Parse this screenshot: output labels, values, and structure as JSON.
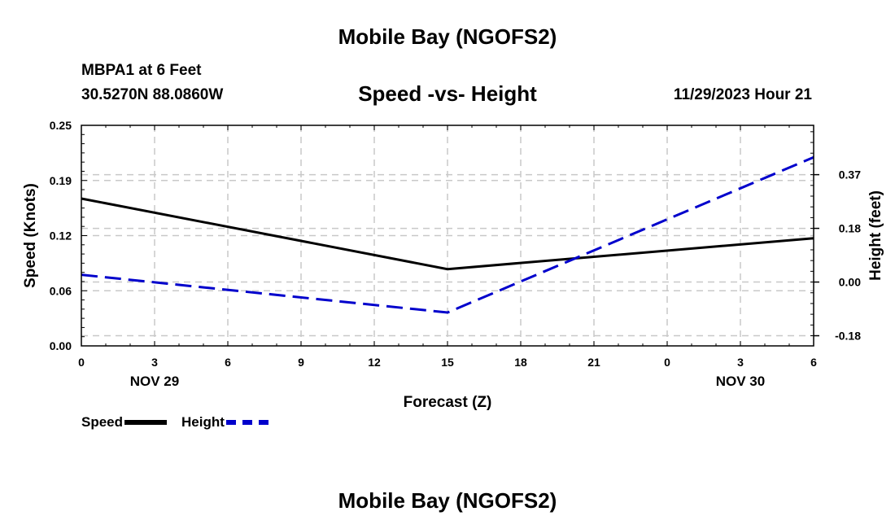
{
  "header": {
    "title": "Mobile Bay (NGOFS2)",
    "station": "MBPA1 at 6 Feet",
    "coords": "30.5270N  88.0860W",
    "subtitle": "Speed -vs- Height",
    "datetime": "11/29/2023 Hour 21"
  },
  "footer": {
    "title": "Mobile Bay (NGOFS2)"
  },
  "chart_data": {
    "type": "line",
    "xlabel": "Forecast (Z)",
    "ylabel": "Speed (Knots)",
    "ylabel_right": "Height (feet)",
    "x_ticks": [
      "0",
      "3",
      "6",
      "9",
      "12",
      "15",
      "18",
      "21",
      "0",
      "3",
      "6"
    ],
    "x_day_labels": [
      {
        "hour_index": 12,
        "label": "NOV 29"
      },
      {
        "hour_index": 36,
        "label": "NOV 30"
      }
    ],
    "xlim": [
      0,
      30
    ],
    "ylim": [
      0,
      0.25
    ],
    "y_ticks": [
      "0.00",
      "0.06",
      "0.12",
      "0.19",
      "0.25"
    ],
    "y_tick_values": [
      0,
      0.0625,
      0.125,
      0.1875,
      0.25
    ],
    "ylim_right": [
      -0.22,
      0.54
    ],
    "y_ticks_right": [
      "-0.18",
      "0.00",
      "0.18",
      "0.37"
    ],
    "y_tick_values_right": [
      -0.185,
      0,
      0.185,
      0.37
    ],
    "grid": true,
    "series": [
      {
        "name": "Speed",
        "axis": "left",
        "color": "#000000",
        "style": "solid",
        "x": [
          0,
          15,
          30
        ],
        "y": [
          0.167,
          0.087,
          0.122
        ]
      },
      {
        "name": "Height",
        "axis": "right",
        "color": "#0000cc",
        "style": "dashed",
        "x": [
          0,
          15,
          30
        ],
        "y": [
          0.025,
          -0.105,
          0.43
        ]
      }
    ]
  }
}
